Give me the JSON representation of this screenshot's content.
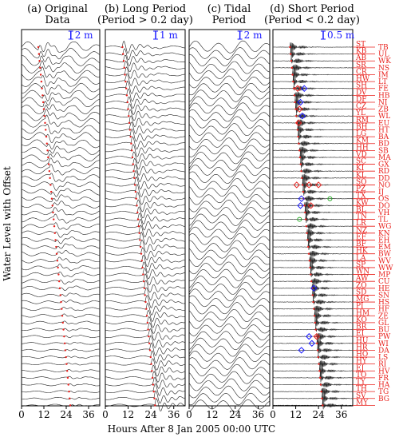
{
  "chart_data": {
    "type": "line",
    "ylabel": "Water Level with Offset",
    "xlabel": "Hours After 8 Jan 2005 00:00 UTC",
    "xlim": [
      0,
      42
    ],
    "xticks": [
      0,
      12,
      24,
      36
    ],
    "colors": {
      "trace": "#222222",
      "pick": "#e8201c",
      "marker_blue": "#1a1aff",
      "marker_red": "#e8201c",
      "marker_green": "#22aa22",
      "scale": "#1a1aff"
    },
    "panels": [
      {
        "title_line1": "(a) Original",
        "title_line2": "Data",
        "scale_label": "2 m",
        "style": "smooth"
      },
      {
        "title_line1": "(b) Long Period",
        "title_line2": "(Period > 0.2 day)",
        "scale_label": "1 m",
        "style": "long"
      },
      {
        "title_line1": "(c) Tidal",
        "title_line2": "Period",
        "scale_label": "2 m",
        "style": "tidal"
      },
      {
        "title_line1": "(d) Short Period",
        "title_line2": "(Period < 0.2 day)",
        "scale_label": "0.5 m",
        "style": "short"
      }
    ],
    "left_stations": [
      "ST",
      "KB",
      "AB",
      "SR",
      "CR",
      "HW",
      "SH",
      "DV",
      "DF",
      "CZ",
      "YL",
      "RM",
      "BH",
      "LG",
      "KM",
      "HH",
      "VD",
      "SC",
      "KI",
      "KL",
      "SO",
      "PZ",
      "TX",
      "KW",
      "BL",
      "TN",
      "LR",
      "NZ",
      "EF",
      "BF",
      "HK",
      "LA",
      "SP",
      "WN",
      "AW",
      "ZO",
      "SD",
      "MG",
      "PI",
      "HM",
      "KO",
      "BR",
      "EI",
      "HU",
      "HR",
      "HO",
      "HY",
      "EJ",
      "TO",
      "TY",
      "TH",
      "SV",
      "MY"
    ],
    "right_stations": [
      "TB",
      "UL",
      "WK",
      "NS",
      "IM",
      "LT",
      "FE",
      "HB",
      "NI",
      "ZB",
      "WL",
      "EU",
      "HT",
      "BA",
      "BD",
      "SB",
      "MA",
      "GX",
      "RD",
      "DD",
      "NO",
      "IJ",
      "OS",
      "DO",
      "VH",
      "TL",
      "WG",
      "KN",
      "EH",
      "EM",
      "BW",
      "WV",
      "WW",
      "MP",
      "CU",
      "HE",
      "SN",
      "HS",
      "HF",
      "ZE",
      "GL",
      "BU",
      "PW",
      "WI",
      "DA",
      "LS",
      "RI",
      "HV",
      "FR",
      "HA",
      "TG",
      "BG"
    ]
  }
}
